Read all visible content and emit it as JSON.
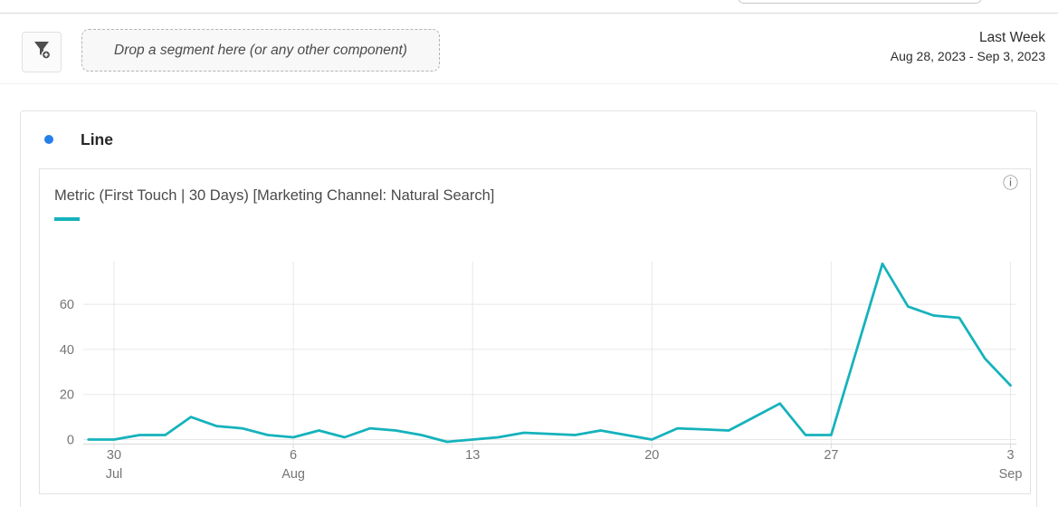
{
  "topbar": {
    "filter_button_icon": "segment-filter-add-icon",
    "dropzone_text": "Drop a segment here (or any other component)",
    "date_preset": "Last Week",
    "date_range": "Aug 28, 2023 - Sep 3, 2023"
  },
  "panel": {
    "title": "Line",
    "bullet_color": "#2680eb"
  },
  "icons": {
    "info": "ⓘ"
  },
  "chart_data": {
    "type": "line",
    "title": "Metric (First Touch | 30 Days) [Marketing Channel: Natural Search]",
    "x": [
      "Jul 29",
      "Jul 30",
      "Jul 31",
      "Aug 1",
      "Aug 2",
      "Aug 3",
      "Aug 4",
      "Aug 5",
      "Aug 6",
      "Aug 7",
      "Aug 8",
      "Aug 9",
      "Aug 10",
      "Aug 11",
      "Aug 12",
      "Aug 13",
      "Aug 14",
      "Aug 15",
      "Aug 16",
      "Aug 17",
      "Aug 18",
      "Aug 19",
      "Aug 20",
      "Aug 21",
      "Aug 22",
      "Aug 23",
      "Aug 24",
      "Aug 25",
      "Aug 26",
      "Aug 27",
      "Aug 28",
      "Aug 29",
      "Aug 30",
      "Aug 31",
      "Sep 1",
      "Sep 2",
      "Sep 3"
    ],
    "series": [
      {
        "name": "Metric (First Touch | 30 Days) [Marketing Channel: Natural Search]",
        "color": "#15b2bc",
        "values": [
          0,
          0,
          2,
          2,
          10,
          6,
          5,
          2,
          1,
          4,
          1,
          5,
          4,
          2,
          -1,
          0,
          1,
          3,
          2.5,
          2,
          4,
          2,
          0,
          5,
          4.5,
          4,
          10,
          16,
          2,
          2,
          40,
          78,
          59,
          55,
          54,
          36,
          24
        ]
      }
    ],
    "x_ticks": [
      {
        "i": 1,
        "label": "30",
        "month": "Jul"
      },
      {
        "i": 8,
        "label": "6",
        "month": "Aug"
      },
      {
        "i": 15,
        "label": "13",
        "month": ""
      },
      {
        "i": 22,
        "label": "20",
        "month": ""
      },
      {
        "i": 29,
        "label": "27",
        "month": ""
      },
      {
        "i": 36,
        "label": "3",
        "month": "Sep"
      }
    ],
    "y_ticks": [
      0,
      20,
      40,
      60
    ],
    "ylim": [
      -2,
      79
    ],
    "xlabel": "",
    "ylabel": "",
    "grid": true,
    "legend_position": "swatch-under-title"
  }
}
